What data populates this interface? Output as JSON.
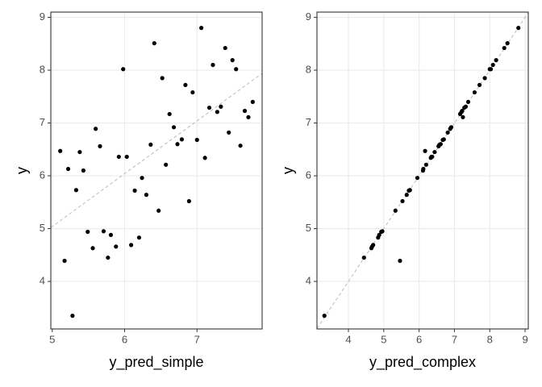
{
  "chart_data": [
    {
      "type": "scatter",
      "x_label": "y_pred_simple",
      "y_label": "y",
      "x": [
        5.11,
        5.17,
        5.22,
        5.28,
        5.33,
        5.38,
        5.43,
        5.49,
        5.56,
        5.6,
        5.66,
        5.71,
        5.77,
        5.81,
        5.88,
        5.92,
        5.98,
        6.03,
        6.09,
        6.14,
        6.2,
        6.24,
        6.3,
        6.36,
        6.41,
        6.47,
        6.52,
        6.57,
        6.62,
        6.68,
        6.73,
        6.79,
        6.84,
        6.89,
        6.94,
        7.0,
        7.06,
        7.11,
        7.17,
        7.22,
        7.28,
        7.33,
        7.39,
        7.44,
        7.49,
        7.54,
        7.6,
        7.66,
        7.71,
        7.77
      ],
      "y": [
        6.47,
        4.39,
        6.13,
        3.35,
        5.73,
        6.45,
        6.1,
        4.94,
        4.63,
        6.89,
        6.56,
        4.95,
        4.45,
        4.88,
        4.66,
        6.36,
        8.02,
        6.36,
        4.69,
        5.72,
        4.83,
        5.96,
        5.64,
        6.59,
        8.51,
        5.34,
        7.85,
        6.21,
        7.17,
        6.92,
        6.6,
        6.69,
        7.72,
        5.52,
        7.58,
        6.68,
        8.8,
        6.34,
        7.29,
        8.1,
        7.21,
        7.31,
        8.42,
        6.82,
        8.19,
        8.02,
        6.57,
        7.23,
        7.11,
        7.4
      ],
      "xlim": [
        4.98,
        7.9
      ],
      "ylim": [
        3.1,
        9.1
      ],
      "xticks": [
        5,
        6,
        7
      ],
      "yticks": [
        4,
        5,
        6,
        7,
        8,
        9
      ],
      "grid": true,
      "color": "#000000",
      "reference_line": {
        "slope": 1,
        "intercept": 0.04,
        "color": "#bbbbbb"
      }
    },
    {
      "type": "scatter",
      "x_label": "y_pred_complex",
      "y_label": "y",
      "x": [
        6.17,
        5.46,
        6.12,
        3.32,
        5.74,
        6.44,
        6.11,
        4.93,
        4.65,
        6.88,
        6.55,
        4.96,
        4.44,
        4.87,
        4.67,
        6.37,
        8.0,
        6.35,
        4.7,
        5.71,
        4.84,
        5.95,
        5.65,
        6.58,
        8.5,
        5.33,
        7.86,
        6.2,
        7.16,
        6.91,
        6.61,
        6.7,
        7.71,
        5.53,
        7.57,
        6.67,
        8.81,
        6.33,
        7.28,
        8.09,
        7.2,
        7.32,
        8.41,
        6.81,
        8.18,
        8.03,
        6.56,
        7.22,
        7.24,
        7.39
      ],
      "y": [
        6.47,
        4.39,
        6.13,
        3.35,
        5.73,
        6.45,
        6.1,
        4.94,
        4.63,
        6.89,
        6.56,
        4.95,
        4.45,
        4.88,
        4.66,
        6.36,
        8.02,
        6.36,
        4.69,
        5.72,
        4.83,
        5.96,
        5.64,
        6.59,
        8.51,
        5.34,
        7.85,
        6.21,
        7.17,
        6.92,
        6.6,
        6.69,
        7.72,
        5.52,
        7.58,
        6.68,
        8.8,
        6.34,
        7.29,
        8.1,
        7.21,
        7.31,
        8.42,
        6.82,
        8.19,
        8.02,
        6.57,
        7.23,
        7.11,
        7.4
      ],
      "xlim": [
        3.11,
        9.09
      ],
      "ylim": [
        3.1,
        9.1
      ],
      "xticks": [
        4,
        5,
        6,
        7,
        8,
        9
      ],
      "yticks": [
        4,
        5,
        6,
        7,
        8,
        9
      ],
      "grid": true,
      "color": "#000000",
      "reference_line": {
        "slope": 1,
        "intercept": 0,
        "color": "#bbbbbb"
      }
    }
  ]
}
